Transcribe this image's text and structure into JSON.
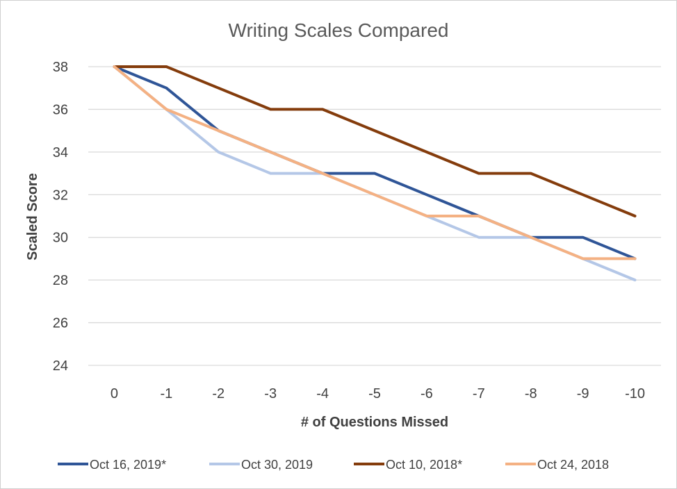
{
  "chart_data": {
    "type": "line",
    "title": "Writing Scales Compared",
    "xlabel": "# of Questions Missed",
    "ylabel": "Scaled Score",
    "categories": [
      "0",
      "-1",
      "-2",
      "-3",
      "-4",
      "-5",
      "-6",
      "-7",
      "-8",
      "-9",
      "-10"
    ],
    "ylim": [
      24,
      38
    ],
    "yticks": [
      "24",
      "26",
      "28",
      "30",
      "32",
      "34",
      "36",
      "38"
    ],
    "grid": true,
    "legend_position": "bottom",
    "series": [
      {
        "name": "Oct 16, 2019*",
        "color": "#2f5597",
        "values": [
          38,
          37,
          35,
          34,
          33,
          33,
          32,
          31,
          30,
          30,
          29
        ]
      },
      {
        "name": "Oct 30, 2019",
        "color": "#b4c7e7",
        "values": [
          38,
          36,
          34,
          33,
          33,
          32,
          31,
          30,
          30,
          29,
          28
        ]
      },
      {
        "name": "Oct 10, 2018*",
        "color": "#843c0c",
        "values": [
          38,
          38,
          37,
          36,
          36,
          35,
          34,
          33,
          33,
          32,
          31
        ]
      },
      {
        "name": "Oct 24, 2018",
        "color": "#f4b183",
        "values": [
          38,
          36,
          35,
          34,
          33,
          32,
          31,
          31,
          30,
          29,
          29
        ]
      }
    ]
  }
}
